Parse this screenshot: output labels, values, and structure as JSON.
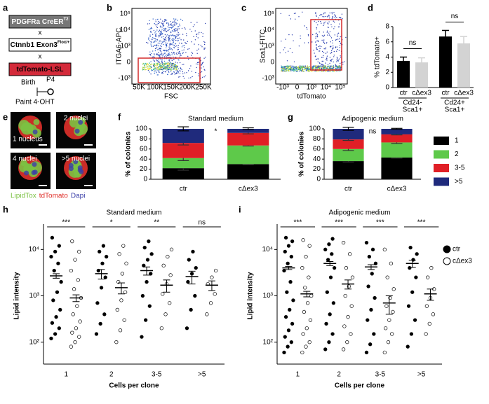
{
  "panel_labels": [
    "a",
    "b",
    "c",
    "d",
    "e",
    "f",
    "g",
    "h",
    "i"
  ],
  "genetics": {
    "boxes": [
      {
        "text": "PDGFRa CreER",
        "sup": "T2",
        "fill": "#777777",
        "text_color": "#ffffff"
      },
      {
        "text": "Ctnnb1 Exon3",
        "sup": "Flox/+",
        "fill": "#ffffff",
        "text_color": "#000000"
      },
      {
        "text": "tdTomato-LSL",
        "fill": "#d42a3a",
        "text_color": "#000000"
      }
    ],
    "crosses": [
      "x",
      "x"
    ],
    "timeline": {
      "birth": "Birth",
      "p4": "P4",
      "treatment": "Paint 4-OHT"
    }
  },
  "flow_plots": [
    {
      "ylabel": "ITGA6-APC",
      "xlabel": "FSC",
      "xticks": [
        "50K",
        "100K",
        "150K",
        "200K",
        "250K"
      ],
      "yticks": [
        "10⁵",
        "10⁴",
        "10³",
        "0",
        "-10³"
      ]
    },
    {
      "ylabel": "Sca1-FITC",
      "xlabel": "tdTomato",
      "xticks": [
        "-10³",
        "0",
        "10³",
        "10⁴",
        "10⁵"
      ],
      "yticks": [
        "10⁵",
        "10⁴",
        "10³",
        "0",
        "-10³"
      ]
    }
  ],
  "micro_images": {
    "captions": [
      "1 nucleus",
      "2 nuclei",
      "4 nuclei",
      ">5 nuclei"
    ],
    "stain_legend": [
      {
        "text": "LipidTox",
        "color": "#7bc142"
      },
      {
        "text": "tdTomato",
        "color": "#e0312b"
      },
      {
        "text": "Dapi",
        "color": "#3b3fa8"
      }
    ]
  },
  "chart_data": [
    {
      "type": "bar",
      "ylabel": "% tdTomato+",
      "categories": [
        "ctr",
        "cΔex3",
        "ctr",
        "cΔex3"
      ],
      "group_labels": [
        [
          "Cd24-",
          "Sca1+"
        ],
        [
          "Cd24+",
          "Sca1+"
        ]
      ],
      "values": [
        3.5,
        3.3,
        6.7,
        5.8
      ],
      "errors": [
        0.5,
        0.6,
        0.8,
        0.9
      ],
      "colors": [
        "#000000",
        "#d3d3d3",
        "#000000",
        "#d3d3d3"
      ],
      "annotations": [
        "ns",
        "ns"
      ],
      "ylim": [
        0,
        8
      ],
      "yticks": [
        0,
        2,
        4,
        6,
        8
      ]
    },
    {
      "type": "stacked_bar",
      "title": "Standard medium",
      "ylabel": "% of colonies",
      "categories": [
        "ctr",
        "cΔex3"
      ],
      "series": [
        {
          "color": "#000000",
          "values": [
            22,
            30
          ],
          "errors": [
            4,
            1
          ]
        },
        {
          "color": "#5ec94a",
          "values": [
            20,
            37
          ],
          "errors": [
            5,
            1
          ]
        },
        {
          "color": "#e01f26",
          "values": [
            30,
            25
          ],
          "errors": [
            4,
            2
          ]
        },
        {
          "color": "#1f2a7c",
          "values": [
            28,
            8
          ],
          "errors": [
            4,
            2
          ]
        }
      ],
      "annotation": "*",
      "ylim": [
        0,
        100
      ],
      "yticks": [
        0,
        20,
        40,
        60,
        80,
        100
      ]
    },
    {
      "type": "stacked_bar",
      "title": "Adipogenic medium",
      "ylabel": "% of colonies",
      "categories": [
        "ctr",
        "cΔex3"
      ],
      "series": [
        {
          "name": "1",
          "color": "#000000",
          "values": [
            36,
            43
          ],
          "errors": [
            2,
            1
          ]
        },
        {
          "name": "2",
          "color": "#5ec94a",
          "values": [
            24,
            30
          ],
          "errors": [
            3,
            2
          ]
        },
        {
          "name": "3-5",
          "color": "#e01f26",
          "values": [
            19,
            16
          ],
          "errors": [
            2,
            1
          ]
        },
        {
          "name": ">5",
          "color": "#1f2a7c",
          "values": [
            21,
            11
          ],
          "errors": [
            3,
            1
          ]
        }
      ],
      "annotation": "ns",
      "legend": "right",
      "ylim": [
        0,
        100
      ],
      "yticks": [
        0,
        20,
        40,
        60,
        80,
        100
      ]
    },
    {
      "type": "dot_scatter",
      "title": "Standard medium",
      "ylabel": "Lipid intensity",
      "xlabel": "Cells per clone",
      "categories": [
        "1",
        "2",
        "3-5",
        ">5"
      ],
      "log_y": true,
      "ylim": [
        40,
        25000
      ],
      "yticks": [
        {
          "value": 100,
          "label": "10²"
        },
        {
          "value": 1000,
          "label": "10³"
        },
        {
          "value": 10000,
          "label": "10⁴"
        }
      ],
      "series": [
        {
          "marker": "filled",
          "values": [
            [
              120,
              150,
              200,
              260,
              350,
              500,
              800,
              1200,
              2000,
              3500,
              5000,
              7000,
              9000,
              12000,
              18000
            ],
            [
              150,
              250,
              400,
              700,
              1500,
              2500,
              3500,
              5000,
              7000,
              9000,
              12000
            ],
            [
              130,
              300,
              600,
              1000,
              2000,
              3000,
              4500,
              6000,
              8000,
              11000,
              15000
            ],
            [
              200,
              500,
              1000,
              2000,
              3000,
              4000,
              6000,
              9000
            ]
          ],
          "means": [
            2700,
            3000,
            3500,
            2600
          ],
          "errors": [
            300,
            700,
            700,
            800
          ]
        },
        {
          "marker": "open",
          "values": [
            [
              80,
              100,
              130,
              160,
              200,
              280,
              400,
              600,
              900,
              1400,
              2200,
              3500,
              6000,
              9000,
              15000
            ],
            [
              100,
              180,
              300,
              500,
              800,
              1200,
              2000,
              3000,
              5000,
              8000,
              12000
            ],
            [
              200,
              400,
              700,
              1100,
              1800,
              2800,
              4500,
              7000,
              10000
            ],
            [
              400,
              700,
              1100,
              1800,
              2500,
              3500
            ]
          ],
          "means": [
            900,
            1500,
            1700,
            1700
          ],
          "errors": [
            150,
            400,
            500,
            400
          ]
        }
      ],
      "significance": [
        "***",
        "*",
        "**",
        "ns"
      ]
    },
    {
      "type": "dot_scatter",
      "title": "Adipogenic medium",
      "ylabel": "Lipid intensity",
      "xlabel": "Cells per clone",
      "categories": [
        "1",
        "2",
        "3-5",
        ">5"
      ],
      "log_y": true,
      "ylim": [
        40,
        25000
      ],
      "yticks": [
        {
          "value": 100,
          "label": "10²"
        },
        {
          "value": 1000,
          "label": "10³"
        },
        {
          "value": 10000,
          "label": "10⁴"
        }
      ],
      "legend": "top-right",
      "series": [
        {
          "name": "ctr",
          "marker": "filled",
          "values": [
            [
              60,
              80,
              100,
              130,
              180,
              250,
              350,
              500,
              800,
              1200,
              2000,
              3500,
              5000,
              7000,
              9000,
              12000,
              15000,
              18000
            ],
            [
              70,
              100,
              150,
              250,
              400,
              700,
              1200,
              2500,
              4000,
              6000,
              8000,
              10000,
              13000,
              17000
            ],
            [
              60,
              90,
              150,
              300,
              500,
              900,
              1600,
              3000,
              5000,
              7000,
              10000,
              14000
            ],
            [
              80,
              150,
              300,
              600,
              1200,
              2500,
              4000,
              6000,
              8000,
              11000
            ]
          ],
          "means": [
            4000,
            5000,
            4200,
            5000
          ],
          "errors": [
            300,
            500,
            500,
            900
          ]
        },
        {
          "name": "cΔex3",
          "marker": "open",
          "values": [
            [
              60,
              80,
              100,
              150,
              200,
              300,
              450,
              700,
              1000,
              1500,
              2500,
              4000,
              7000,
              12000,
              16000
            ],
            [
              70,
              100,
              150,
              220,
              350,
              600,
              1000,
              1600,
              2500,
              4000,
              8000,
              14000
            ],
            [
              60,
              100,
              150,
              200,
              300,
              450,
              600,
              900,
              1400,
              2500,
              5000,
              10000
            ],
            [
              150,
              250,
              400,
              600,
              900,
              1400,
              2500,
              4000
            ]
          ],
          "means": [
            1100,
            1800,
            700,
            1100
          ],
          "errors": [
            150,
            400,
            300,
            300
          ]
        }
      ],
      "significance": [
        "***",
        "***",
        "***",
        "***"
      ]
    }
  ]
}
